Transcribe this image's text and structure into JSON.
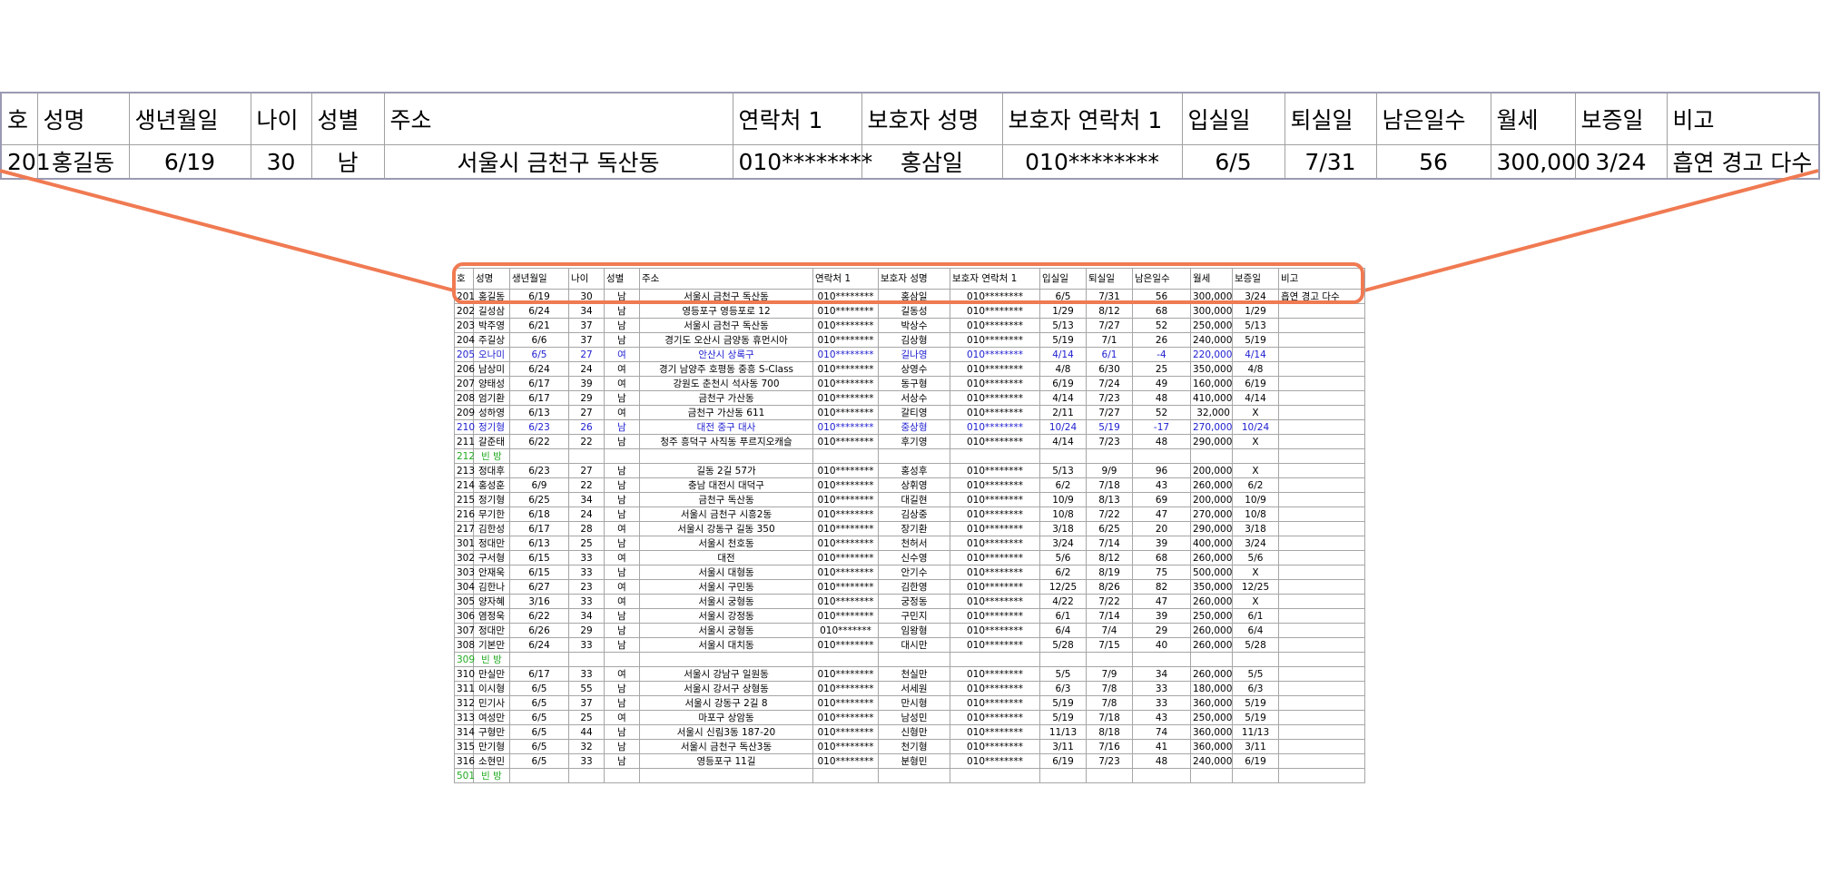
{
  "colors": {
    "highlight": "#f07a52",
    "blue_row": "#2020d0",
    "vacant_row": "#22aa22"
  },
  "headers": [
    "호",
    "성명",
    "생년월일",
    "나이",
    "성별",
    "주소",
    "연락처 1",
    "보호자 성명",
    "보호자 연락처 1",
    "입실일",
    "퇴실일",
    "남은일수",
    "월세",
    "보증일",
    "비고"
  ],
  "zoom": {
    "headers": [
      "호",
      "성명",
      "생년월일",
      "나이",
      "성별",
      "주소",
      "연락처 1",
      "보호자 성명",
      "보호자 연락처 1",
      "입실일",
      "퇴실일",
      "남은일수",
      "월세",
      "보증일",
      "비고"
    ],
    "row": [
      "201",
      "홍길동",
      "6/19",
      "30",
      "남",
      "서울시 금천구 독산동",
      "010********",
      "홍삼일",
      "010********",
      "6/5",
      "7/31",
      "56",
      "300,000",
      "3/24",
      "흡연 경고 다수"
    ]
  },
  "rows": [
    {
      "cells": [
        "201",
        "홍길동",
        "6/19",
        "30",
        "남",
        "서울시 금천구 독산동",
        "010********",
        "홍삼일",
        "010********",
        "6/5",
        "7/31",
        "56",
        "300,000",
        "3/24",
        "흡연 경고 다수"
      ]
    },
    {
      "cells": [
        "202",
        "길성삼",
        "6/24",
        "34",
        "남",
        "영등포구 영등포로 12",
        "010********",
        "길동성",
        "010********",
        "1/29",
        "8/12",
        "68",
        "300,000",
        "1/29",
        ""
      ]
    },
    {
      "cells": [
        "203",
        "박주영",
        "6/21",
        "37",
        "남",
        "서울시 금천구 독산동",
        "010********",
        "박상수",
        "010********",
        "5/13",
        "7/27",
        "52",
        "250,000",
        "5/13",
        ""
      ]
    },
    {
      "cells": [
        "204",
        "주길상",
        "6/6",
        "37",
        "남",
        "경기도 오산시 금양동 휴먼시아",
        "010********",
        "김상형",
        "010********",
        "5/19",
        "7/1",
        "26",
        "240,000",
        "5/19",
        ""
      ]
    },
    {
      "cells": [
        "205",
        "오나미",
        "6/5",
        "27",
        "여",
        "안산시 상록구",
        "010********",
        "길나영",
        "010********",
        "4/14",
        "6/1",
        "-4",
        "220,000",
        "4/14",
        ""
      ],
      "style": "blue"
    },
    {
      "cells": [
        "206",
        "남상미",
        "6/24",
        "24",
        "여",
        "경기 남양주 호평동 중흥 S-Class",
        "010********",
        "상영수",
        "010********",
        "4/8",
        "6/30",
        "25",
        "350,000",
        "4/8",
        ""
      ]
    },
    {
      "cells": [
        "207",
        "양태성",
        "6/17",
        "39",
        "여",
        "강원도 춘천시 석사동 700",
        "010********",
        "동구형",
        "010********",
        "6/19",
        "7/24",
        "49",
        "160,000",
        "6/19",
        ""
      ]
    },
    {
      "cells": [
        "208",
        "엄기환",
        "6/17",
        "29",
        "남",
        "금천구 가산동",
        "010********",
        "서상수",
        "010********",
        "4/14",
        "7/23",
        "48",
        "410,000",
        "4/14",
        ""
      ]
    },
    {
      "cells": [
        "209",
        "성하영",
        "6/13",
        "27",
        "여",
        "금천구 가산동 611",
        "010********",
        "갈티영",
        "010********",
        "2/11",
        "7/27",
        "52",
        "32,000",
        "X",
        ""
      ]
    },
    {
      "cells": [
        "210",
        "정기형",
        "6/23",
        "26",
        "남",
        "대전 중구 대사",
        "010********",
        "중상형",
        "010********",
        "10/24",
        "5/19",
        "-17",
        "270,000",
        "10/24",
        ""
      ],
      "style": "blue"
    },
    {
      "cells": [
        "211",
        "갈준태",
        "6/22",
        "22",
        "남",
        "청주 흥덕구 사직동 푸르지오캐슬",
        "010********",
        "후기영",
        "010********",
        "4/14",
        "7/23",
        "48",
        "290,000",
        "X",
        ""
      ]
    },
    {
      "cells": [
        "212",
        "빈 방",
        "",
        "",
        "",
        "",
        "",
        "",
        "",
        "",
        "",
        "",
        "",
        "",
        ""
      ],
      "style": "vacant"
    },
    {
      "cells": [
        "213",
        "정대후",
        "6/23",
        "27",
        "남",
        "길동 2길 57가",
        "010********",
        "홍성후",
        "010********",
        "5/13",
        "9/9",
        "96",
        "200,000",
        "X",
        ""
      ]
    },
    {
      "cells": [
        "214",
        "홍성훈",
        "6/9",
        "22",
        "남",
        "충남 대전시 대덕구",
        "010********",
        "상휘영",
        "010********",
        "6/2",
        "7/18",
        "43",
        "260,000",
        "6/2",
        ""
      ]
    },
    {
      "cells": [
        "215",
        "정기형",
        "6/25",
        "34",
        "남",
        "금천구 독산동",
        "010********",
        "대길현",
        "010********",
        "10/9",
        "8/13",
        "69",
        "200,000",
        "10/9",
        ""
      ]
    },
    {
      "cells": [
        "216",
        "무기한",
        "6/18",
        "24",
        "남",
        "서울시 금천구 시흥2동",
        "010********",
        "김상중",
        "010********",
        "10/8",
        "7/22",
        "47",
        "270,000",
        "10/8",
        ""
      ]
    },
    {
      "cells": [
        "217",
        "김한성",
        "6/17",
        "28",
        "여",
        "서울시 강동구 길동 350",
        "010********",
        "장기환",
        "010********",
        "3/18",
        "6/25",
        "20",
        "290,000",
        "3/18",
        ""
      ]
    },
    {
      "cells": [
        "301",
        "정대만",
        "6/13",
        "25",
        "남",
        "서울시 천호동",
        "010********",
        "천허서",
        "010********",
        "3/24",
        "7/14",
        "39",
        "400,000",
        "3/24",
        ""
      ]
    },
    {
      "cells": [
        "302",
        "구서형",
        "6/15",
        "33",
        "여",
        "대전",
        "010********",
        "신수영",
        "010********",
        "5/6",
        "8/12",
        "68",
        "260,000",
        "5/6",
        ""
      ]
    },
    {
      "cells": [
        "303",
        "안재욱",
        "6/15",
        "33",
        "남",
        "서울시 대형동",
        "010********",
        "안기수",
        "010********",
        "6/2",
        "8/19",
        "75",
        "500,000",
        "X",
        ""
      ]
    },
    {
      "cells": [
        "304",
        "김한나",
        "6/27",
        "23",
        "여",
        "서울시 구민동",
        "010********",
        "김한영",
        "010********",
        "12/25",
        "8/26",
        "82",
        "350,000",
        "12/25",
        ""
      ]
    },
    {
      "cells": [
        "305",
        "양자혜",
        "3/16",
        "33",
        "여",
        "서울시 궁형동",
        "010********",
        "궁정동",
        "010********",
        "4/22",
        "7/22",
        "47",
        "260,000",
        "X",
        ""
      ]
    },
    {
      "cells": [
        "306",
        "염정욱",
        "6/22",
        "34",
        "남",
        "서울시 강정동",
        "010********",
        "구민지",
        "010********",
        "6/1",
        "7/14",
        "39",
        "250,000",
        "6/1",
        ""
      ]
    },
    {
      "cells": [
        "307",
        "정대만",
        "6/26",
        "29",
        "남",
        "서울시 궁형동",
        "010*******",
        "임왕형",
        "010********",
        "6/4",
        "7/4",
        "29",
        "260,000",
        "6/4",
        ""
      ]
    },
    {
      "cells": [
        "308",
        "기본만",
        "6/24",
        "33",
        "남",
        "서울시 대치동",
        "010********",
        "대시만",
        "010********",
        "5/28",
        "7/15",
        "40",
        "260,000",
        "5/28",
        ""
      ]
    },
    {
      "cells": [
        "309",
        "빈 방",
        "",
        "",
        "",
        "",
        "",
        "",
        "",
        "",
        "",
        "",
        "",
        "",
        ""
      ],
      "style": "vacant"
    },
    {
      "cells": [
        "310",
        "만실만",
        "6/17",
        "33",
        "여",
        "서울시 강남구 일원동",
        "010********",
        "천실만",
        "010********",
        "5/5",
        "7/9",
        "34",
        "260,000",
        "5/5",
        ""
      ]
    },
    {
      "cells": [
        "311",
        "이시형",
        "6/5",
        "55",
        "남",
        "서울시 강서구 상형동",
        "010********",
        "서세원",
        "010********",
        "6/3",
        "7/8",
        "33",
        "180,000",
        "6/3",
        ""
      ]
    },
    {
      "cells": [
        "312",
        "민기사",
        "6/5",
        "37",
        "남",
        "서울시 강동구 2길 8",
        "010********",
        "만시형",
        "010********",
        "5/19",
        "7/8",
        "33",
        "360,000",
        "5/19",
        ""
      ]
    },
    {
      "cells": [
        "313",
        "여성만",
        "6/5",
        "25",
        "여",
        "마포구 상암동",
        "010********",
        "남성민",
        "010********",
        "5/19",
        "7/18",
        "43",
        "250,000",
        "5/19",
        ""
      ]
    },
    {
      "cells": [
        "314",
        "구형만",
        "6/5",
        "44",
        "남",
        "서울시 신림3동 187-20",
        "010********",
        "신형만",
        "010********",
        "11/13",
        "8/18",
        "74",
        "360,000",
        "11/13",
        ""
      ]
    },
    {
      "cells": [
        "315",
        "만기형",
        "6/5",
        "32",
        "남",
        "서울시 금천구 독산3동",
        "010********",
        "천기형",
        "010********",
        "3/11",
        "7/16",
        "41",
        "360,000",
        "3/11",
        ""
      ]
    },
    {
      "cells": [
        "316",
        "소현민",
        "6/5",
        "33",
        "남",
        "영등포구 11길",
        "010********",
        "분형민",
        "010********",
        "6/19",
        "7/23",
        "48",
        "240,000",
        "6/19",
        ""
      ]
    },
    {
      "cells": [
        "501",
        "빈 방",
        "",
        "",
        "",
        "",
        "",
        "",
        "",
        "",
        "",
        "",
        "",
        "",
        ""
      ],
      "style": "vacant"
    }
  ]
}
